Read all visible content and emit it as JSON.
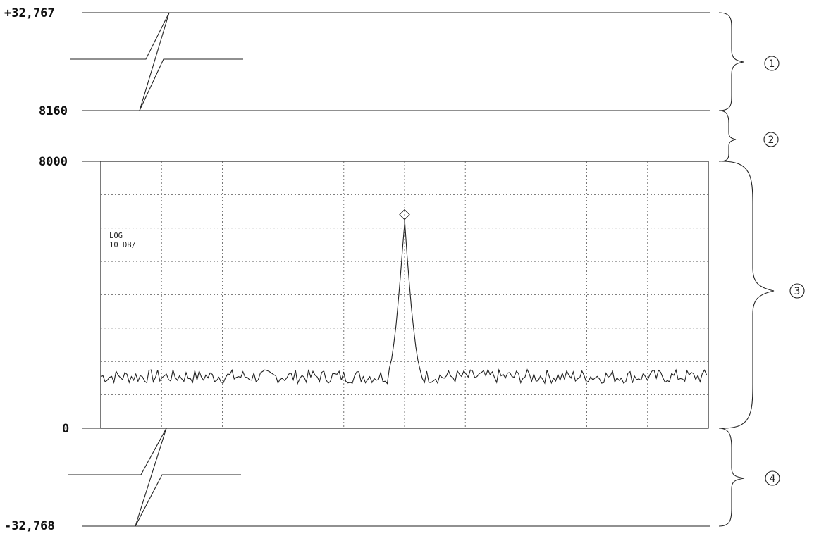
{
  "scale_labels": {
    "top": "+32,767",
    "upper": "8160",
    "screen_top": "8000",
    "zero": "0",
    "bottom": "-32,768"
  },
  "screen": {
    "scale_mode": "LOG",
    "scale_per_div": "10 DB/"
  },
  "regions": [
    "1",
    "2",
    "3",
    "4"
  ],
  "chart_data": {
    "type": "line",
    "xlim": [
      0,
      1000
    ],
    "ylim": [
      0,
      8000
    ],
    "grid": true,
    "grid_divisions": {
      "x": 10,
      "y": 8
    },
    "noise_floor_level": 1550,
    "peak": {
      "x": 500,
      "y": 6150,
      "marker": "diamond"
    }
  }
}
